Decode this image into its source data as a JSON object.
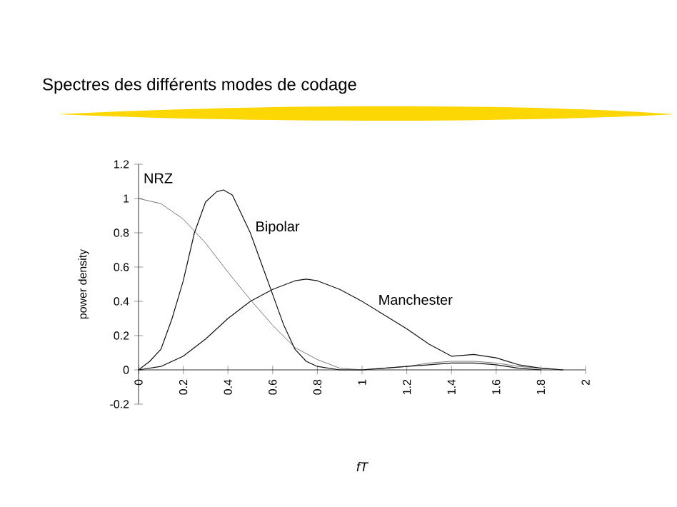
{
  "chart_data": {
    "type": "line",
    "title": "Spectres des différents modes de codage",
    "xlabel": "fT",
    "ylabel": "power density",
    "xlim": [
      0,
      2
    ],
    "ylim": [
      -0.2,
      1.2
    ],
    "xticks": [
      0,
      0.2,
      0.4,
      0.6,
      0.8,
      1,
      1.2,
      1.4,
      1.6,
      1.8,
      2
    ],
    "yticks": [
      -0.2,
      0,
      0.2,
      0.4,
      0.6,
      0.8,
      1,
      1.2
    ],
    "grid": false,
    "marker": "none",
    "line_style": "solid",
    "series": [
      {
        "name": "NRZ",
        "color": "#555555",
        "x": [
          0,
          0.1,
          0.2,
          0.3,
          0.4,
          0.5,
          0.6,
          0.7,
          0.8,
          0.9,
          1.0,
          1.1,
          1.2,
          1.3,
          1.4,
          1.5,
          1.6,
          1.7,
          1.8,
          1.9
        ],
        "values": [
          1.0,
          0.97,
          0.88,
          0.74,
          0.57,
          0.41,
          0.26,
          0.13,
          0.06,
          0.01,
          0,
          0.01,
          0.02,
          0.04,
          0.05,
          0.05,
          0.04,
          0.02,
          0.01,
          0
        ]
      },
      {
        "name": "Bipolar",
        "color": "#111111",
        "x": [
          0,
          0.05,
          0.1,
          0.15,
          0.2,
          0.25,
          0.3,
          0.35,
          0.38,
          0.42,
          0.5,
          0.55,
          0.6,
          0.65,
          0.7,
          0.75,
          0.8,
          0.9,
          1.0,
          1.1,
          1.2,
          1.3,
          1.4,
          1.5,
          1.6,
          1.7,
          1.8
        ],
        "values": [
          0,
          0.05,
          0.12,
          0.3,
          0.52,
          0.8,
          0.98,
          1.04,
          1.05,
          1.02,
          0.8,
          0.62,
          0.44,
          0.26,
          0.12,
          0.05,
          0.02,
          0.0,
          0,
          0.01,
          0.02,
          0.03,
          0.04,
          0.04,
          0.03,
          0.01,
          0
        ]
      },
      {
        "name": "Manchester",
        "color": "#111111",
        "x": [
          0,
          0.1,
          0.2,
          0.3,
          0.4,
          0.5,
          0.6,
          0.7,
          0.75,
          0.8,
          0.9,
          1.0,
          1.1,
          1.2,
          1.3,
          1.4,
          1.5,
          1.6,
          1.7,
          1.8,
          1.9
        ],
        "values": [
          0,
          0.02,
          0.08,
          0.18,
          0.3,
          0.4,
          0.47,
          0.52,
          0.53,
          0.52,
          0.47,
          0.4,
          0.32,
          0.24,
          0.15,
          0.08,
          0.09,
          0.07,
          0.03,
          0.01,
          0
        ]
      }
    ]
  }
}
